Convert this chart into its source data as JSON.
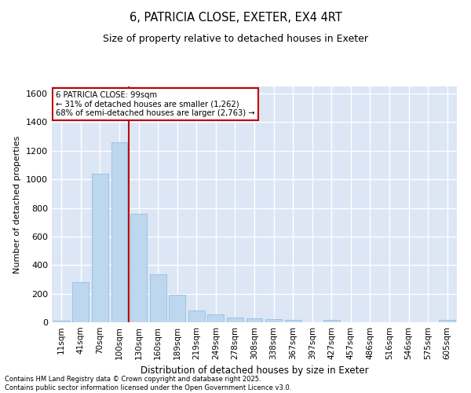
{
  "title1": "6, PATRICIA CLOSE, EXETER, EX4 4RT",
  "title2": "Size of property relative to detached houses in Exeter",
  "xlabel": "Distribution of detached houses by size in Exeter",
  "ylabel": "Number of detached properties",
  "categories": [
    "11sqm",
    "41sqm",
    "70sqm",
    "100sqm",
    "130sqm",
    "160sqm",
    "189sqm",
    "219sqm",
    "249sqm",
    "278sqm",
    "308sqm",
    "338sqm",
    "367sqm",
    "397sqm",
    "427sqm",
    "457sqm",
    "486sqm",
    "516sqm",
    "546sqm",
    "575sqm",
    "605sqm"
  ],
  "values": [
    10,
    280,
    1040,
    1260,
    760,
    335,
    190,
    85,
    55,
    35,
    25,
    20,
    15,
    0,
    15,
    0,
    0,
    0,
    0,
    0,
    15
  ],
  "bar_color": "#bdd7ee",
  "bar_edge_color": "#9dc3e6",
  "background_color": "#dce6f5",
  "grid_color": "#ffffff",
  "annotation_box_color": "#c00000",
  "annotation_line1": "6 PATRICIA CLOSE: 99sqm",
  "annotation_line2": "← 31% of detached houses are smaller (1,262)",
  "annotation_line3": "68% of semi-detached houses are larger (2,763) →",
  "red_line_x": 3.5,
  "ylim": [
    0,
    1650
  ],
  "yticks": [
    0,
    200,
    400,
    600,
    800,
    1000,
    1200,
    1400,
    1600
  ],
  "footer1": "Contains HM Land Registry data © Crown copyright and database right 2025.",
  "footer2": "Contains public sector information licensed under the Open Government Licence v3.0."
}
